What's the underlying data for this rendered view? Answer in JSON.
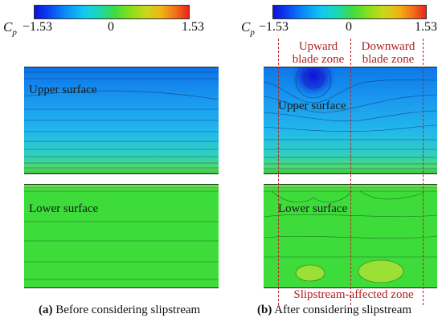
{
  "colorbar": {
    "symbol": "C",
    "subscript": "p",
    "min_label": "−1.53",
    "mid_label": "0",
    "max_label": "1.53",
    "colors": [
      "#1010d8",
      "#0a8cf6",
      "#11c9f2",
      "#3fdc3f",
      "#c8d81a",
      "#f27318",
      "#e8241c"
    ]
  },
  "left": {
    "upper_label": "Upper surface",
    "lower_label": "Lower surface",
    "caption_letter": "(a)",
    "caption_text": " Before considering slipstream"
  },
  "right": {
    "upper_label": "Upper surface",
    "lower_label": "Lower surface",
    "zone_upward": [
      "Upward",
      "blade zone"
    ],
    "zone_downward": [
      "Downward",
      "blade zone"
    ],
    "zone_slipstream": "Slipstream-affected zone",
    "caption_letter": "(b)",
    "caption_text": " After considering slipstream"
  },
  "colors": {
    "annotation_red": "#b22222",
    "upper_blue": "#1f8ff0",
    "lower_green": "#3ddc3a"
  }
}
